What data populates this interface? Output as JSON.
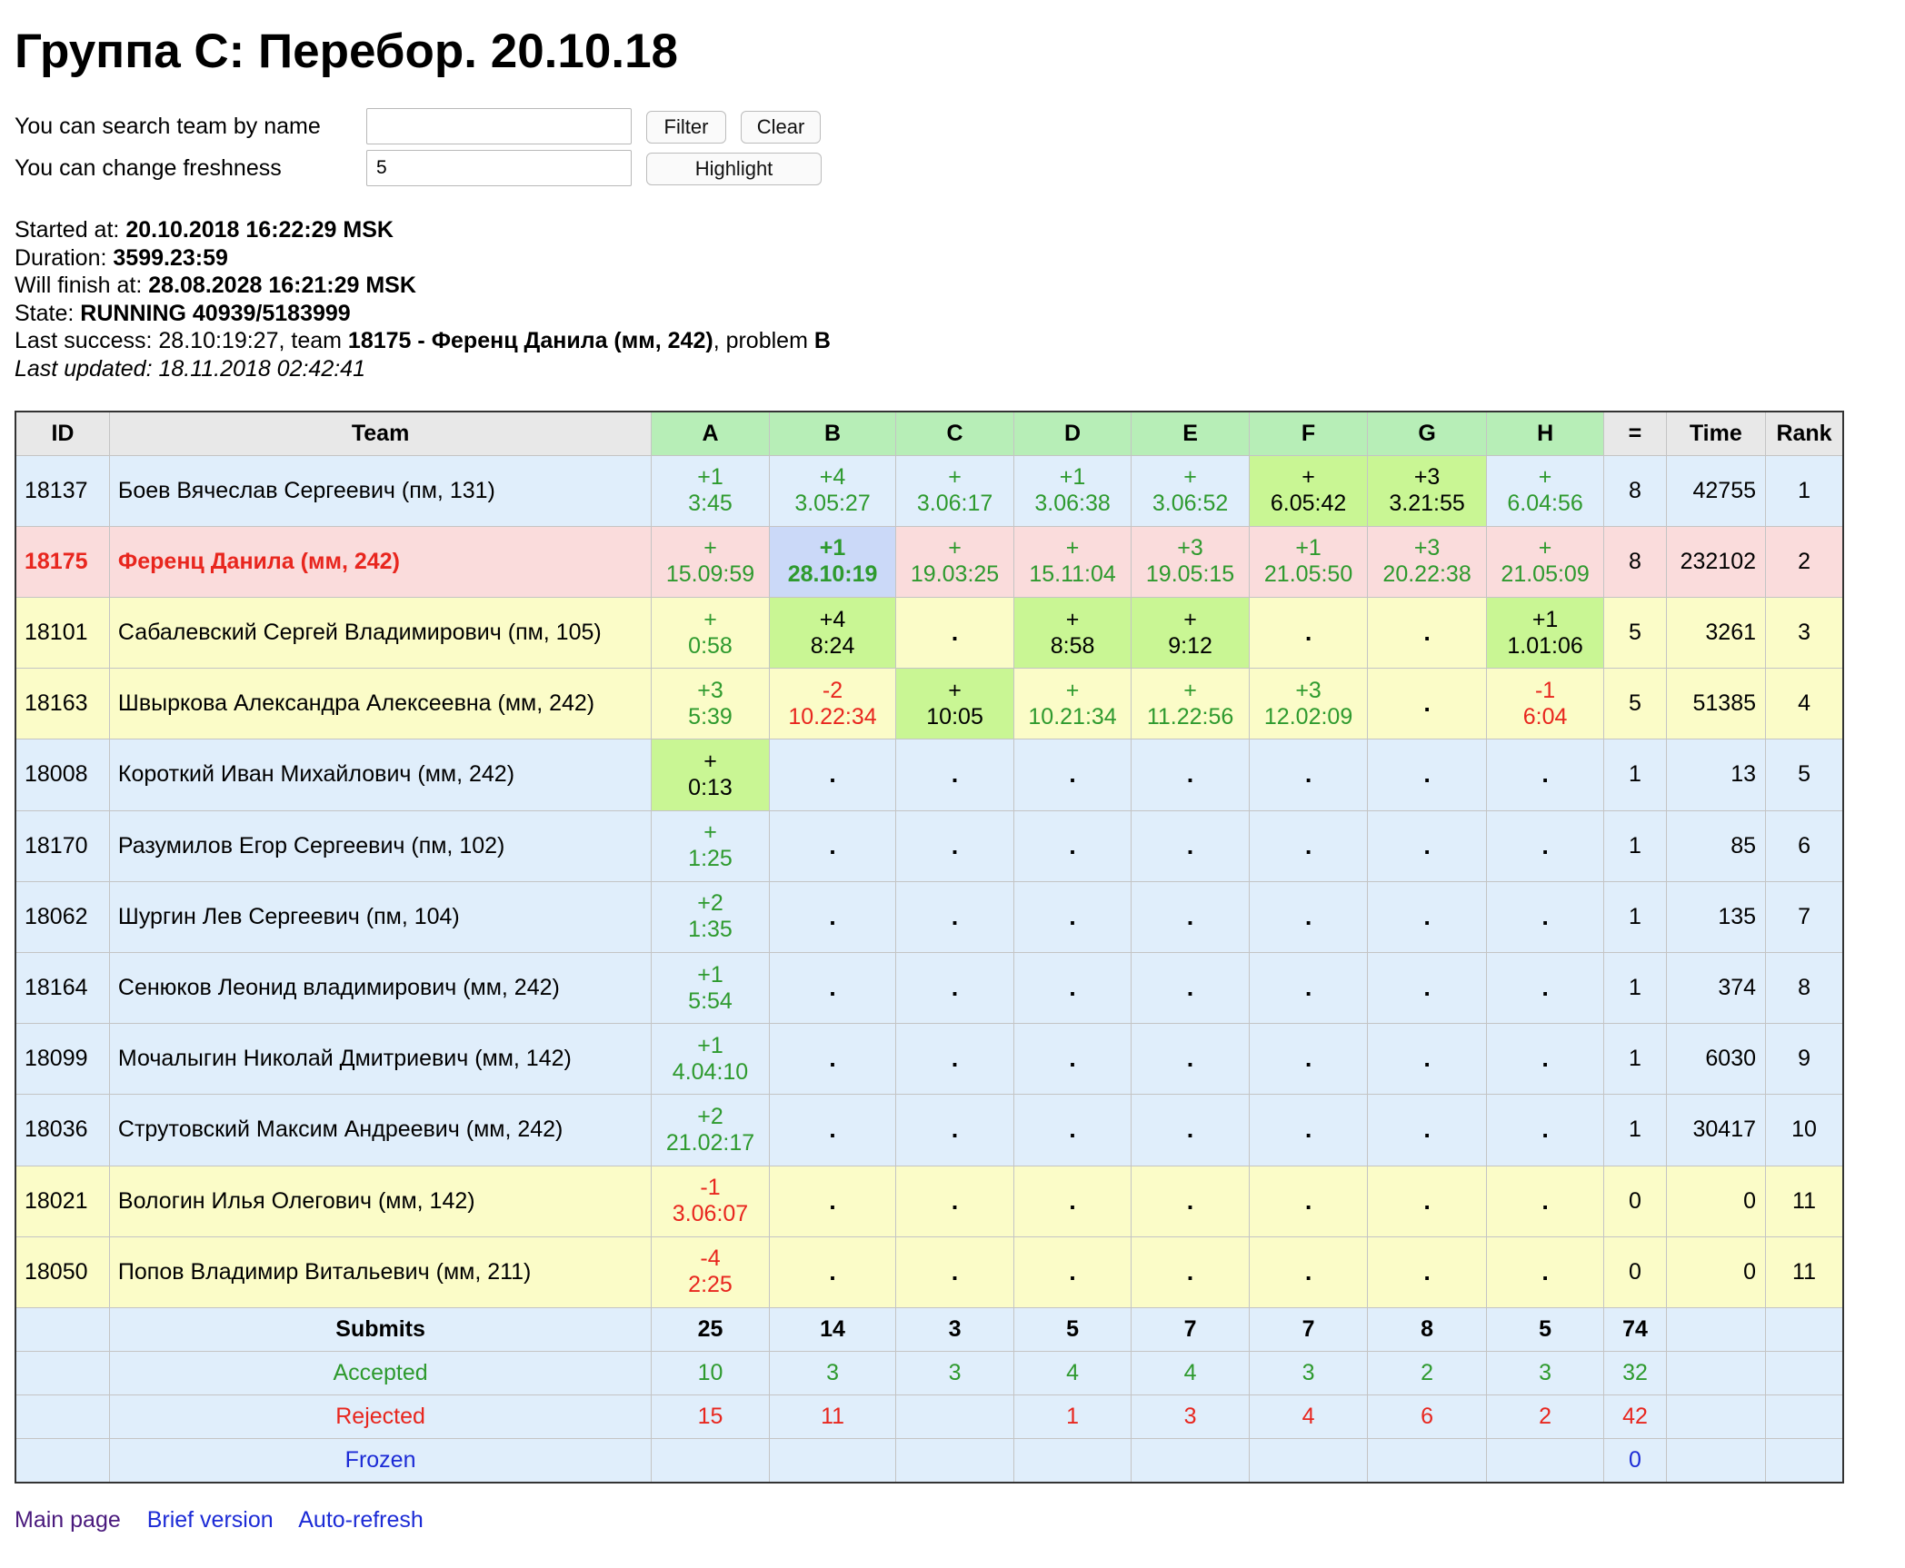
{
  "title": "Группа C: Перебор. 20.10.18",
  "controls": {
    "search_label": "You can search team by name",
    "search_value": "",
    "filter_label": "Filter",
    "clear_label": "Clear",
    "freshness_label": "You can change freshness",
    "freshness_value": "5",
    "highlight_label": "Highlight"
  },
  "info": {
    "started_label": "Started at:",
    "started_value": "20.10.2018 16:22:29 MSK",
    "duration_label": "Duration:",
    "duration_value": "3599.23:59",
    "finish_label": "Will finish at:",
    "finish_value": "28.08.2028 16:21:29 MSK",
    "state_label": "State:",
    "state_value": "RUNNING 40939/5183999",
    "last_success_label": "Last success:",
    "last_success_time": "28.10:19:27",
    "last_success_team_word": ", team",
    "last_success_team_id": "18175",
    "last_success_dash": "-",
    "last_success_team_name": "Ференц Данила (мм, 242)",
    "last_success_problem_word": ", problem",
    "last_success_problem": "B",
    "last_updated": "Last updated: 18.11.2018 02:42:41"
  },
  "table": {
    "headers": {
      "id": "ID",
      "team": "Team",
      "solved": "=",
      "time": "Time",
      "rank": "Rank"
    },
    "problems": [
      "A",
      "B",
      "C",
      "D",
      "E",
      "F",
      "G",
      "H"
    ],
    "rows": [
      {
        "id": "18137",
        "team": "Боев Вячеслав Сергеевич (пм, 131)",
        "bg": "blue",
        "cells": [
          [
            "+1",
            "3:45",
            "ok",
            ""
          ],
          [
            "+4",
            "3.05:27",
            "ok",
            ""
          ],
          [
            "+",
            "3.06:17",
            "ok",
            ""
          ],
          [
            "+1",
            "3.06:38",
            "ok",
            ""
          ],
          [
            "+",
            "3.06:52",
            "ok",
            ""
          ],
          [
            "+",
            "6.05:42",
            "ok",
            "fresh"
          ],
          [
            "+3",
            "3.21:55",
            "ok",
            "fresh"
          ],
          [
            "+",
            "6.04:56",
            "ok",
            ""
          ]
        ],
        "solved": "8",
        "time": "42755",
        "rank": "1"
      },
      {
        "id": "18175",
        "team": "Ференц Данила (мм, 242)",
        "bg": "pink",
        "cells": [
          [
            "+",
            "15.09:59",
            "ok",
            ""
          ],
          [
            "+1",
            "28.10:19",
            "ok",
            "last"
          ],
          [
            "+",
            "19.03:25",
            "ok",
            ""
          ],
          [
            "+",
            "15.11:04",
            "ok",
            ""
          ],
          [
            "+3",
            "19.05:15",
            "ok",
            ""
          ],
          [
            "+1",
            "21.05:50",
            "ok",
            ""
          ],
          [
            "+3",
            "20.22:38",
            "ok",
            ""
          ],
          [
            "+",
            "21.05:09",
            "ok",
            ""
          ]
        ],
        "solved": "8",
        "time": "232102",
        "rank": "2"
      },
      {
        "id": "18101",
        "team": "Сабалевский Сергей Владимирович (пм, 105)",
        "bg": "yellow",
        "cells": [
          [
            "+",
            "0:58",
            "ok",
            ""
          ],
          [
            "+4",
            "8:24",
            "ok",
            "fresh"
          ],
          [
            ".",
            "",
            "dot",
            ""
          ],
          [
            "+",
            "8:58",
            "ok",
            "fresh"
          ],
          [
            "+",
            "9:12",
            "ok",
            "fresh"
          ],
          [
            ".",
            "",
            "dot",
            ""
          ],
          [
            ".",
            "",
            "dot",
            ""
          ],
          [
            "+1",
            "1.01:06",
            "ok",
            "fresh"
          ]
        ],
        "solved": "5",
        "time": "3261",
        "rank": "3"
      },
      {
        "id": "18163",
        "team": "Швыркова Александра Алексеевна (мм, 242)",
        "bg": "yellow",
        "cells": [
          [
            "+3",
            "5:39",
            "ok",
            ""
          ],
          [
            "-2",
            "10.22:34",
            "bad",
            ""
          ],
          [
            "+",
            "10:05",
            "ok",
            "fresh"
          ],
          [
            "+",
            "10.21:34",
            "ok",
            ""
          ],
          [
            "+",
            "11.22:56",
            "ok",
            ""
          ],
          [
            "+3",
            "12.02:09",
            "ok",
            ""
          ],
          [
            ".",
            "",
            "dot",
            ""
          ],
          [
            "-1",
            "6:04",
            "bad",
            ""
          ]
        ],
        "solved": "5",
        "time": "51385",
        "rank": "4"
      },
      {
        "id": "18008",
        "team": "Короткий Иван Михайлович (мм, 242)",
        "bg": "blue",
        "cells": [
          [
            "+",
            "0:13",
            "ok",
            "fresh"
          ],
          [
            ".",
            "",
            "dot",
            ""
          ],
          [
            ".",
            "",
            "dot",
            ""
          ],
          [
            ".",
            "",
            "dot",
            ""
          ],
          [
            ".",
            "",
            "dot",
            ""
          ],
          [
            ".",
            "",
            "dot",
            ""
          ],
          [
            ".",
            "",
            "dot",
            ""
          ],
          [
            ".",
            "",
            "dot",
            ""
          ]
        ],
        "solved": "1",
        "time": "13",
        "rank": "5"
      },
      {
        "id": "18170",
        "team": "Разумилов Егор Сергеевич (пм, 102)",
        "bg": "blue",
        "cells": [
          [
            "+",
            "1:25",
            "ok",
            ""
          ],
          [
            ".",
            "",
            "dot",
            ""
          ],
          [
            ".",
            "",
            "dot",
            ""
          ],
          [
            ".",
            "",
            "dot",
            ""
          ],
          [
            ".",
            "",
            "dot",
            ""
          ],
          [
            ".",
            "",
            "dot",
            ""
          ],
          [
            ".",
            "",
            "dot",
            ""
          ],
          [
            ".",
            "",
            "dot",
            ""
          ]
        ],
        "solved": "1",
        "time": "85",
        "rank": "6"
      },
      {
        "id": "18062",
        "team": "Шургин Лев Сергеевич (пм, 104)",
        "bg": "blue",
        "cells": [
          [
            "+2",
            "1:35",
            "ok",
            ""
          ],
          [
            ".",
            "",
            "dot",
            ""
          ],
          [
            ".",
            "",
            "dot",
            ""
          ],
          [
            ".",
            "",
            "dot",
            ""
          ],
          [
            ".",
            "",
            "dot",
            ""
          ],
          [
            ".",
            "",
            "dot",
            ""
          ],
          [
            ".",
            "",
            "dot",
            ""
          ],
          [
            ".",
            "",
            "dot",
            ""
          ]
        ],
        "solved": "1",
        "time": "135",
        "rank": "7"
      },
      {
        "id": "18164",
        "team": "Сенюков Леонид владимирович (мм, 242)",
        "bg": "blue",
        "cells": [
          [
            "+1",
            "5:54",
            "ok",
            ""
          ],
          [
            ".",
            "",
            "dot",
            ""
          ],
          [
            ".",
            "",
            "dot",
            ""
          ],
          [
            ".",
            "",
            "dot",
            ""
          ],
          [
            ".",
            "",
            "dot",
            ""
          ],
          [
            ".",
            "",
            "dot",
            ""
          ],
          [
            ".",
            "",
            "dot",
            ""
          ],
          [
            ".",
            "",
            "dot",
            ""
          ]
        ],
        "solved": "1",
        "time": "374",
        "rank": "8"
      },
      {
        "id": "18099",
        "team": "Мочалыгин Николай Дмитриевич (мм, 142)",
        "bg": "blue",
        "cells": [
          [
            "+1",
            "4.04:10",
            "ok",
            ""
          ],
          [
            ".",
            "",
            "dot",
            ""
          ],
          [
            ".",
            "",
            "dot",
            ""
          ],
          [
            ".",
            "",
            "dot",
            ""
          ],
          [
            ".",
            "",
            "dot",
            ""
          ],
          [
            ".",
            "",
            "dot",
            ""
          ],
          [
            ".",
            "",
            "dot",
            ""
          ],
          [
            ".",
            "",
            "dot",
            ""
          ]
        ],
        "solved": "1",
        "time": "6030",
        "rank": "9"
      },
      {
        "id": "18036",
        "team": "Струтовский Максим Андреевич (мм, 242)",
        "bg": "blue",
        "cells": [
          [
            "+2",
            "21.02:17",
            "ok",
            ""
          ],
          [
            ".",
            "",
            "dot",
            ""
          ],
          [
            ".",
            "",
            "dot",
            ""
          ],
          [
            ".",
            "",
            "dot",
            ""
          ],
          [
            ".",
            "",
            "dot",
            ""
          ],
          [
            ".",
            "",
            "dot",
            ""
          ],
          [
            ".",
            "",
            "dot",
            ""
          ],
          [
            ".",
            "",
            "dot",
            ""
          ]
        ],
        "solved": "1",
        "time": "30417",
        "rank": "10"
      },
      {
        "id": "18021",
        "team": "Вологин Илья Олегович (мм, 142)",
        "bg": "yellow",
        "cells": [
          [
            "-1",
            "3.06:07",
            "bad",
            ""
          ],
          [
            ".",
            "",
            "dot",
            ""
          ],
          [
            ".",
            "",
            "dot",
            ""
          ],
          [
            ".",
            "",
            "dot",
            ""
          ],
          [
            ".",
            "",
            "dot",
            ""
          ],
          [
            ".",
            "",
            "dot",
            ""
          ],
          [
            ".",
            "",
            "dot",
            ""
          ],
          [
            ".",
            "",
            "dot",
            ""
          ]
        ],
        "solved": "0",
        "time": "0",
        "rank": "11"
      },
      {
        "id": "18050",
        "team": "Попов Владимир Витальевич (мм, 211)",
        "bg": "yellow",
        "cells": [
          [
            "-4",
            "2:25",
            "bad",
            ""
          ],
          [
            ".",
            "",
            "dot",
            ""
          ],
          [
            ".",
            "",
            "dot",
            ""
          ],
          [
            ".",
            "",
            "dot",
            ""
          ],
          [
            ".",
            "",
            "dot",
            ""
          ],
          [
            ".",
            "",
            "dot",
            ""
          ],
          [
            ".",
            "",
            "dot",
            ""
          ],
          [
            ".",
            "",
            "dot",
            ""
          ]
        ],
        "solved": "0",
        "time": "0",
        "rank": "11"
      }
    ],
    "summary": {
      "submits": {
        "label": "Submits",
        "values": [
          "25",
          "14",
          "3",
          "5",
          "7",
          "7",
          "8",
          "5"
        ],
        "total": "74"
      },
      "accepted": {
        "label": "Accepted",
        "values": [
          "10",
          "3",
          "3",
          "4",
          "4",
          "3",
          "2",
          "3"
        ],
        "total": "32"
      },
      "rejected": {
        "label": "Rejected",
        "values": [
          "15",
          "11",
          "",
          "1",
          "3",
          "4",
          "6",
          "2"
        ],
        "total": "42"
      },
      "frozen": {
        "label": "Frozen",
        "values": [
          "",
          "",
          "",
          "",
          "",
          "",
          "",
          ""
        ],
        "total": "0"
      }
    }
  },
  "footer": {
    "main_page": "Main page",
    "brief": "Brief version",
    "auto_refresh": "Auto-refresh"
  },
  "colors": {
    "ok": "#2e9a2e",
    "bad": "#e8261e",
    "fresh": "#c9f694",
    "last": "#cbd9f8",
    "header_problem": "#b7eeb7"
  }
}
